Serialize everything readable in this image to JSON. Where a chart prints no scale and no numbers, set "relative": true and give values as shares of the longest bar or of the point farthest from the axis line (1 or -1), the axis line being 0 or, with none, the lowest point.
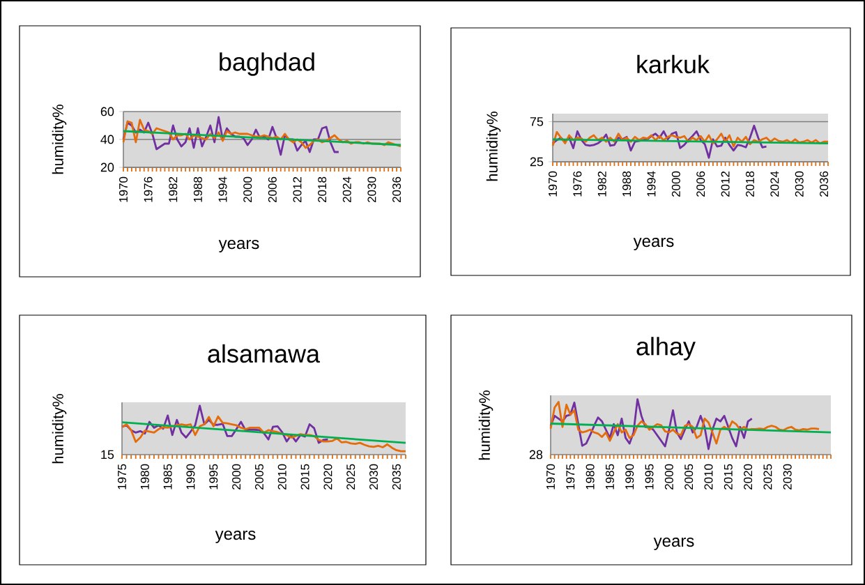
{
  "chart_data": [
    {
      "type": "line",
      "title": "baghdad",
      "xlabel": "years",
      "ylabel": "humidity%",
      "ylim": [
        20,
        60
      ],
      "yticks": [
        20,
        40,
        60
      ],
      "grid": "y",
      "categories": [
        "1970",
        null,
        null,
        null,
        null,
        null,
        "1976",
        null,
        null,
        null,
        null,
        null,
        "1982",
        null,
        null,
        null,
        null,
        null,
        "1988",
        null,
        null,
        null,
        null,
        null,
        "1994",
        null,
        null,
        null,
        null,
        null,
        "2000",
        null,
        null,
        null,
        null,
        null,
        "2006",
        null,
        null,
        null,
        null,
        null,
        "2012",
        null,
        null,
        null,
        null,
        null,
        "2018",
        null,
        null,
        null,
        null,
        null,
        "2024",
        null,
        null,
        null,
        null,
        null,
        "2030",
        null,
        null,
        null,
        null,
        null,
        "2036",
        null
      ],
      "series": [
        {
          "color": "#7030a0",
          "values": [
            40,
            52,
            50,
            45,
            47,
            45,
            52,
            44,
            33,
            35,
            37,
            37,
            50,
            40,
            35,
            38,
            48,
            34,
            48,
            35,
            42,
            50,
            38,
            56,
            40,
            48,
            44,
            42,
            42,
            41,
            36,
            40,
            47,
            41,
            42,
            40,
            49,
            41,
            29,
            43,
            40,
            40,
            32,
            36,
            39,
            31,
            40,
            40,
            48,
            49,
            38,
            31,
            31,
            null,
            null,
            null,
            null,
            null,
            null,
            null,
            null,
            null,
            null,
            null,
            null,
            null,
            null,
            null
          ]
        },
        {
          "color": "#e46c0a",
          "values": [
            38,
            53,
            52,
            38,
            54,
            47,
            46,
            44,
            48,
            47,
            46,
            45,
            40,
            43,
            43,
            44,
            40,
            43,
            42,
            41,
            40,
            44,
            41,
            45,
            39,
            46,
            44,
            45,
            44,
            44,
            44,
            43,
            42,
            42,
            43,
            42,
            41,
            42,
            40,
            44,
            40,
            38,
            40,
            38,
            34,
            36,
            39,
            40,
            38,
            39,
            41,
            43,
            40,
            38,
            39,
            37,
            38,
            38,
            37,
            38,
            37,
            37,
            37,
            36,
            38,
            37,
            36,
            35
          ]
        },
        {
          "color": "#00b050",
          "values": [
            46,
            null,
            null,
            null,
            null,
            null,
            null,
            null,
            null,
            null,
            null,
            null,
            null,
            null,
            null,
            null,
            null,
            null,
            null,
            null,
            null,
            null,
            null,
            null,
            null,
            null,
            null,
            null,
            null,
            null,
            null,
            null,
            null,
            null,
            null,
            null,
            null,
            null,
            null,
            null,
            null,
            null,
            null,
            null,
            null,
            null,
            null,
            null,
            null,
            null,
            null,
            null,
            null,
            null,
            null,
            null,
            null,
            null,
            null,
            null,
            null,
            null,
            null,
            null,
            null,
            null,
            null,
            36
          ]
        }
      ]
    },
    {
      "type": "line",
      "title": "karkuk",
      "xlabel": "years",
      "ylabel": "humidity%",
      "ylim": [
        25,
        85
      ],
      "yticks": [
        25,
        75
      ],
      "grid": "y",
      "categories": [
        "1970",
        null,
        null,
        null,
        null,
        null,
        "1976",
        null,
        null,
        null,
        null,
        null,
        "1982",
        null,
        null,
        null,
        null,
        null,
        "1988",
        null,
        null,
        null,
        null,
        null,
        "1994",
        null,
        null,
        null,
        null,
        null,
        "2000",
        null,
        null,
        null,
        null,
        null,
        "2006",
        null,
        null,
        null,
        null,
        null,
        "2012",
        null,
        null,
        null,
        null,
        null,
        "2018",
        null,
        null,
        null,
        null,
        null,
        "2024",
        null,
        null,
        null,
        null,
        null,
        "2030",
        null,
        null,
        null,
        null,
        null,
        "2036",
        null
      ],
      "series": [
        {
          "color": "#7030a0",
          "values": [
            48,
            52,
            55,
            50,
            55,
            42,
            63,
            52,
            46,
            45,
            46,
            48,
            52,
            59,
            45,
            46,
            55,
            53,
            56,
            39,
            50,
            51,
            52,
            53,
            57,
            60,
            55,
            63,
            53,
            60,
            62,
            42,
            46,
            52,
            57,
            63,
            52,
            47,
            30,
            53,
            44,
            45,
            55,
            46,
            39,
            46,
            45,
            43,
            55,
            70,
            55,
            43,
            44,
            null,
            null,
            null,
            null,
            null,
            null,
            null,
            null,
            null,
            null,
            null,
            null,
            null,
            null,
            null
          ]
        },
        {
          "color": "#e46c0a",
          "values": [
            45,
            62,
            55,
            48,
            58,
            52,
            55,
            54,
            50,
            55,
            58,
            52,
            55,
            50,
            55,
            50,
            60,
            52,
            55,
            50,
            56,
            52,
            55,
            54,
            58,
            52,
            57,
            52,
            56,
            58,
            56,
            55,
            57,
            50,
            55,
            52,
            57,
            50,
            58,
            48,
            53,
            60,
            50,
            58,
            44,
            55,
            50,
            56,
            47,
            52,
            50,
            53,
            55,
            50,
            54,
            51,
            50,
            52,
            49,
            53,
            49,
            50,
            52,
            49,
            52,
            48,
            50,
            50
          ]
        },
        {
          "color": "#00b050",
          "values": [
            53,
            null,
            null,
            null,
            null,
            null,
            null,
            null,
            null,
            null,
            null,
            null,
            null,
            null,
            null,
            null,
            null,
            null,
            null,
            null,
            null,
            null,
            null,
            null,
            null,
            null,
            null,
            null,
            null,
            null,
            null,
            null,
            null,
            null,
            null,
            null,
            null,
            null,
            null,
            null,
            null,
            null,
            null,
            null,
            null,
            null,
            null,
            null,
            null,
            null,
            null,
            null,
            null,
            null,
            null,
            null,
            null,
            null,
            null,
            null,
            null,
            null,
            null,
            null,
            null,
            null,
            null,
            48
          ]
        }
      ]
    },
    {
      "type": "line",
      "title": "alsamawa",
      "xlabel": "years",
      "ylabel": "humidity%",
      "relative": true,
      "annotations": [
        "15"
      ],
      "categories": [
        "1975",
        null,
        null,
        null,
        null,
        "1980",
        null,
        null,
        null,
        null,
        "1985",
        null,
        null,
        null,
        null,
        "1990",
        null,
        null,
        null,
        null,
        "1995",
        null,
        null,
        null,
        null,
        "2000",
        null,
        null,
        null,
        null,
        "2005",
        null,
        null,
        null,
        null,
        "2010",
        null,
        null,
        null,
        null,
        "2015",
        null,
        null,
        null,
        null,
        "2020",
        null,
        null,
        null,
        null,
        "2025",
        null,
        null,
        null,
        null,
        "2030",
        null,
        null,
        null,
        null,
        "2035",
        null,
        null
      ],
      "series": [
        {
          "color": "#7030a0",
          "values": [
            0.57,
            0.6,
            0.5,
            0.45,
            0.48,
            0.43,
            0.67,
            0.55,
            0.6,
            0.53,
            0.8,
            0.4,
            0.71,
            0.45,
            0.35,
            0.47,
            0.6,
            1.0,
            0.62,
            0.71,
            0.61,
            0.61,
            0.63,
            0.38,
            0.38,
            0.52,
            0.67,
            0.5,
            0.51,
            0.51,
            0.5,
            0.44,
            0.31,
            0.57,
            0.58,
            0.46,
            0.27,
            0.4,
            0.27,
            0.4,
            0.37,
            0.62,
            0.54,
            0.24,
            0.3,
            0.31,
            null,
            null,
            null,
            null,
            null,
            null,
            null,
            null,
            null,
            null,
            null,
            null,
            null,
            null,
            null,
            null,
            null
          ]
        },
        {
          "color": "#e46c0a",
          "values": [
            0.56,
            0.62,
            0.5,
            0.26,
            0.35,
            0.49,
            0.47,
            0.45,
            0.52,
            0.56,
            0.55,
            0.58,
            0.6,
            0.62,
            0.6,
            0.62,
            0.4,
            0.58,
            0.62,
            0.77,
            0.58,
            0.78,
            0.65,
            0.64,
            0.62,
            0.6,
            0.55,
            0.52,
            0.55,
            0.55,
            0.55,
            0.45,
            0.5,
            0.48,
            0.46,
            0.43,
            0.4,
            0.35,
            0.38,
            0.42,
            0.4,
            0.4,
            0.38,
            0.3,
            0.27,
            0.27,
            0.28,
            0.33,
            0.25,
            0.26,
            0.23,
            0.22,
            0.24,
            0.2,
            0.17,
            0.16,
            0.18,
            0.15,
            0.21,
            0.14,
            0.09,
            0.07,
            0.07
          ]
        },
        {
          "color": "#00b050",
          "values": [
            0.66,
            null,
            null,
            null,
            null,
            null,
            null,
            null,
            null,
            null,
            null,
            null,
            null,
            null,
            null,
            null,
            null,
            null,
            null,
            null,
            null,
            null,
            null,
            null,
            null,
            null,
            null,
            null,
            null,
            null,
            null,
            null,
            null,
            null,
            null,
            null,
            null,
            null,
            null,
            null,
            null,
            null,
            null,
            null,
            null,
            null,
            null,
            null,
            null,
            null,
            null,
            null,
            null,
            null,
            null,
            null,
            null,
            null,
            null,
            null,
            null,
            null,
            0.24
          ]
        }
      ]
    },
    {
      "type": "line",
      "title": "alhay",
      "xlabel": "years",
      "ylabel": "humidity%",
      "relative": true,
      "annotations": [
        "28"
      ],
      "categories": [
        "1970",
        null,
        null,
        null,
        null,
        "1975",
        null,
        null,
        null,
        null,
        "1980",
        null,
        null,
        null,
        null,
        "1985",
        null,
        null,
        null,
        null,
        "1990",
        null,
        null,
        null,
        null,
        "1995",
        null,
        null,
        null,
        null,
        "2000",
        null,
        null,
        null,
        null,
        "2005",
        null,
        null,
        null,
        null,
        "2010",
        null,
        null,
        null,
        null,
        "2015",
        null,
        null,
        null,
        null,
        "2020",
        null,
        null,
        null,
        null,
        "2025",
        null,
        null,
        null,
        null,
        "2030",
        null,
        null,
        null,
        null,
        null,
        null,
        null,
        null,
        null,
        null,
        null
      ],
      "series": [
        {
          "color": "#7030a0",
          "values": [
            0.52,
            0.7,
            0.65,
            0.6,
            0.7,
            0.72,
            0.94,
            0.55,
            0.16,
            0.2,
            0.35,
            0.52,
            0.67,
            0.6,
            0.45,
            0.3,
            0.55,
            0.35,
            0.65,
            0.3,
            0.2,
            0.4,
            1.0,
            0.7,
            0.5,
            0.5,
            0.45,
            0.35,
            0.25,
            0.15,
            0.45,
            0.8,
            0.4,
            0.28,
            0.45,
            0.6,
            0.4,
            0.5,
            0.7,
            0.5,
            0.1,
            0.45,
            0.65,
            0.6,
            0.7,
            0.5,
            0.3,
            0.15,
            0.5,
            0.3,
            0.6,
            0.65,
            null,
            null,
            null,
            null,
            null,
            null,
            null,
            null,
            null,
            null,
            null,
            null,
            null,
            null,
            null,
            null,
            null,
            null,
            null,
            null
          ]
        },
        {
          "color": "#e46c0a",
          "values": [
            0.47,
            0.85,
            0.95,
            0.5,
            0.9,
            0.72,
            0.8,
            0.45,
            0.4,
            0.42,
            0.45,
            0.4,
            0.38,
            0.32,
            0.4,
            0.25,
            0.4,
            0.55,
            0.4,
            0.45,
            0.3,
            0.35,
            0.52,
            0.6,
            0.55,
            0.45,
            0.5,
            0.55,
            0.53,
            0.42,
            0.4,
            0.45,
            0.38,
            0.35,
            0.52,
            0.55,
            0.5,
            0.3,
            0.35,
            0.65,
            0.58,
            0.4,
            0.2,
            0.45,
            0.5,
            0.45,
            0.6,
            0.55,
            0.45,
            0.5,
            0.45,
            0.46,
            0.46,
            0.47,
            0.46,
            0.5,
            0.52,
            0.5,
            0.45,
            0.44,
            0.48,
            0.5,
            0.45,
            0.44,
            0.46,
            0.45,
            0.47,
            0.47,
            0.46,
            null,
            null,
            null
          ]
        },
        {
          "color": "#00b050",
          "values": [
            0.56,
            null,
            null,
            null,
            null,
            null,
            null,
            null,
            null,
            null,
            null,
            null,
            null,
            null,
            null,
            null,
            null,
            null,
            null,
            null,
            null,
            null,
            null,
            null,
            null,
            null,
            null,
            null,
            null,
            null,
            null,
            null,
            null,
            null,
            null,
            null,
            null,
            null,
            null,
            null,
            null,
            null,
            null,
            null,
            null,
            null,
            null,
            null,
            null,
            null,
            null,
            null,
            null,
            null,
            null,
            null,
            null,
            null,
            null,
            null,
            null,
            null,
            null,
            null,
            null,
            null,
            null,
            null,
            null,
            null,
            null,
            0.4
          ]
        }
      ]
    }
  ]
}
